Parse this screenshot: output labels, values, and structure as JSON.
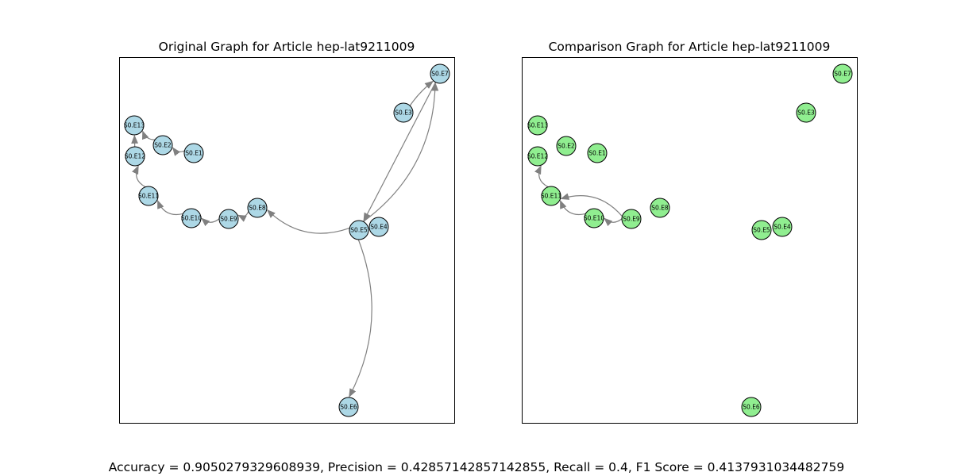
{
  "graphs": [
    {
      "title": "Original Graph for Article hep-lat9211009",
      "node_color": "#add8e6",
      "nodes": [
        {
          "id": "S0.E1"
        },
        {
          "id": "S0.E2"
        },
        {
          "id": "S0.E3"
        },
        {
          "id": "S0.E4"
        },
        {
          "id": "S0.E5"
        },
        {
          "id": "S0.E6"
        },
        {
          "id": "S0.E7"
        },
        {
          "id": "S0.E8"
        },
        {
          "id": "S0.E9"
        },
        {
          "id": "S0.E10"
        },
        {
          "id": "S0.E11"
        },
        {
          "id": "S0.E12"
        },
        {
          "id": "S0.E13"
        }
      ],
      "edges": [
        {
          "from": "S0.E1",
          "to": "S0.E2"
        },
        {
          "from": "S0.E2",
          "to": "S0.E13"
        },
        {
          "from": "S0.E12",
          "to": "S0.E13"
        },
        {
          "from": "S0.E11",
          "to": "S0.E12"
        },
        {
          "from": "S0.E10",
          "to": "S0.E11"
        },
        {
          "from": "S0.E9",
          "to": "S0.E10"
        },
        {
          "from": "S0.E8",
          "to": "S0.E9"
        },
        {
          "from": "S0.E5",
          "to": "S0.E8"
        },
        {
          "from": "S0.E5",
          "to": "S0.E7"
        },
        {
          "from": "S0.E3",
          "to": "S0.E7"
        },
        {
          "from": "S0.E7",
          "to": "S0.E5"
        },
        {
          "from": "S0.E5",
          "to": "S0.E6"
        }
      ]
    },
    {
      "title": "Comparison Graph for Article hep-lat9211009",
      "node_color": "#90ee90",
      "nodes": [
        {
          "id": "S0.E1"
        },
        {
          "id": "S0.E2"
        },
        {
          "id": "S0.E3"
        },
        {
          "id": "S0.E4"
        },
        {
          "id": "S0.E5"
        },
        {
          "id": "S0.E6"
        },
        {
          "id": "S0.E7"
        },
        {
          "id": "S0.E8"
        },
        {
          "id": "S0.E9"
        },
        {
          "id": "S0.E10"
        },
        {
          "id": "S0.E11"
        },
        {
          "id": "S0.E12"
        },
        {
          "id": "S0.E13"
        }
      ],
      "edges": [
        {
          "from": "S0.E11",
          "to": "S0.E12"
        },
        {
          "from": "S0.E10",
          "to": "S0.E11"
        },
        {
          "from": "S0.E9",
          "to": "S0.E10"
        },
        {
          "from": "S0.E9",
          "to": "S0.E11"
        }
      ]
    }
  ],
  "metrics": "Accuracy = 0.9050279329608939, Precision = 0.42857142857142855, Recall = 0.4, F1 Score = 0.4137931034482759",
  "edge_color": "#808080"
}
